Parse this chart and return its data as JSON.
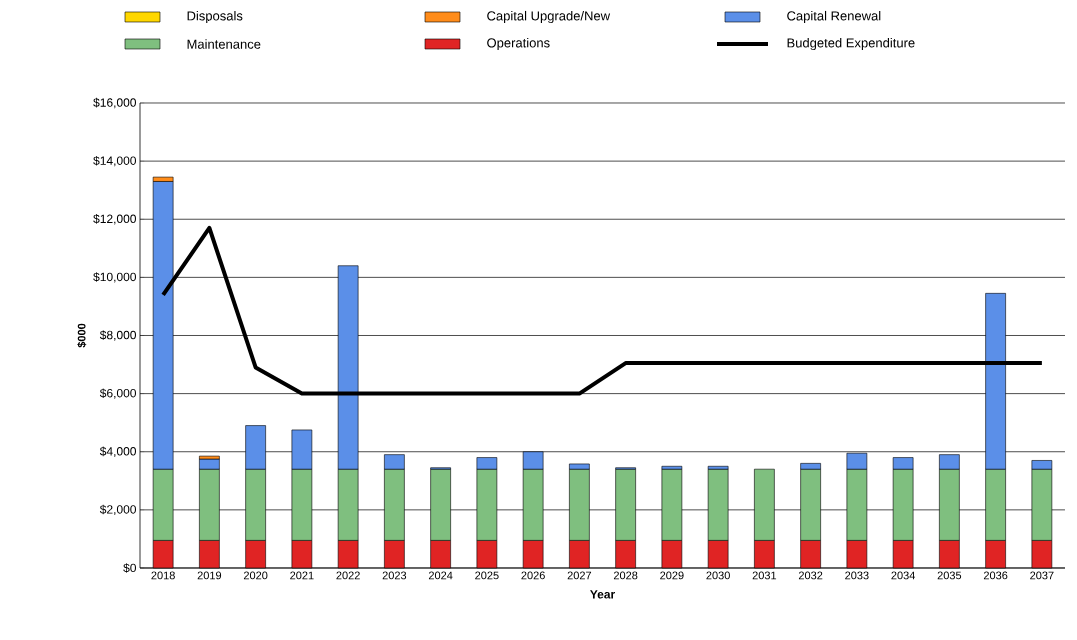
{
  "chart_data": {
    "type": "bar",
    "stacked": true,
    "xlabel": "Year",
    "ylabel": "$000",
    "categories": [
      "2018",
      "2019",
      "2020",
      "2021",
      "2022",
      "2023",
      "2024",
      "2025",
      "2026",
      "2027",
      "2028",
      "2029",
      "2030",
      "2031",
      "2032",
      "2033",
      "2034",
      "2035",
      "2036",
      "2037"
    ],
    "series": [
      {
        "name": "Operations",
        "color": "#e02424",
        "values": [
          950,
          950,
          950,
          950,
          950,
          950,
          950,
          950,
          950,
          950,
          950,
          950,
          950,
          950,
          950,
          950,
          950,
          950,
          950,
          950
        ]
      },
      {
        "name": "Maintenance",
        "color": "#7fbf7f",
        "values": [
          2450,
          2450,
          2450,
          2450,
          2450,
          2450,
          2450,
          2450,
          2450,
          2450,
          2450,
          2450,
          2450,
          2450,
          2450,
          2450,
          2450,
          2450,
          2450,
          2450
        ]
      },
      {
        "name": "Capital Renewal",
        "color": "#5b8fe8",
        "values": [
          9900,
          350,
          1500,
          1350,
          7000,
          500,
          50,
          400,
          600,
          180,
          50,
          100,
          100,
          0,
          200,
          550,
          400,
          500,
          6050,
          300
        ]
      },
      {
        "name": "Capital Upgrade/New",
        "color": "#ff8c1a",
        "values": [
          150,
          100,
          0,
          0,
          0,
          0,
          0,
          0,
          0,
          0,
          0,
          0,
          0,
          0,
          0,
          0,
          0,
          0,
          0,
          0
        ]
      },
      {
        "name": "Disposals",
        "color": "#ffd700",
        "values": [
          0,
          0,
          0,
          0,
          0,
          0,
          0,
          0,
          0,
          0,
          0,
          0,
          0,
          0,
          0,
          0,
          0,
          0,
          0,
          0
        ]
      },
      {
        "name": "Budgeted Expenditure",
        "type": "line",
        "color": "#000000",
        "values": [
          9400,
          11700,
          6900,
          6000,
          6000,
          6000,
          6000,
          6000,
          6000,
          6000,
          7050,
          7050,
          7050,
          7050,
          7050,
          7050,
          7050,
          7050,
          7050,
          7050
        ]
      }
    ],
    "ylim": [
      0,
      16000
    ],
    "yticks": [
      {
        "value": 0,
        "label": "$0"
      },
      {
        "value": 2000,
        "label": "$2,000"
      },
      {
        "value": 4000,
        "label": "$4,000"
      },
      {
        "value": 6000,
        "label": "$6,000"
      },
      {
        "value": 8000,
        "label": "$8,000"
      },
      {
        "value": 10000,
        "label": "$10,000"
      },
      {
        "value": 12000,
        "label": "$12,000"
      },
      {
        "value": 14000,
        "label": "$14,000"
      },
      {
        "value": 16000,
        "label": "$16,000"
      }
    ],
    "grid": "y",
    "legend": "top",
    "marker": "none",
    "line_style": "solid"
  }
}
